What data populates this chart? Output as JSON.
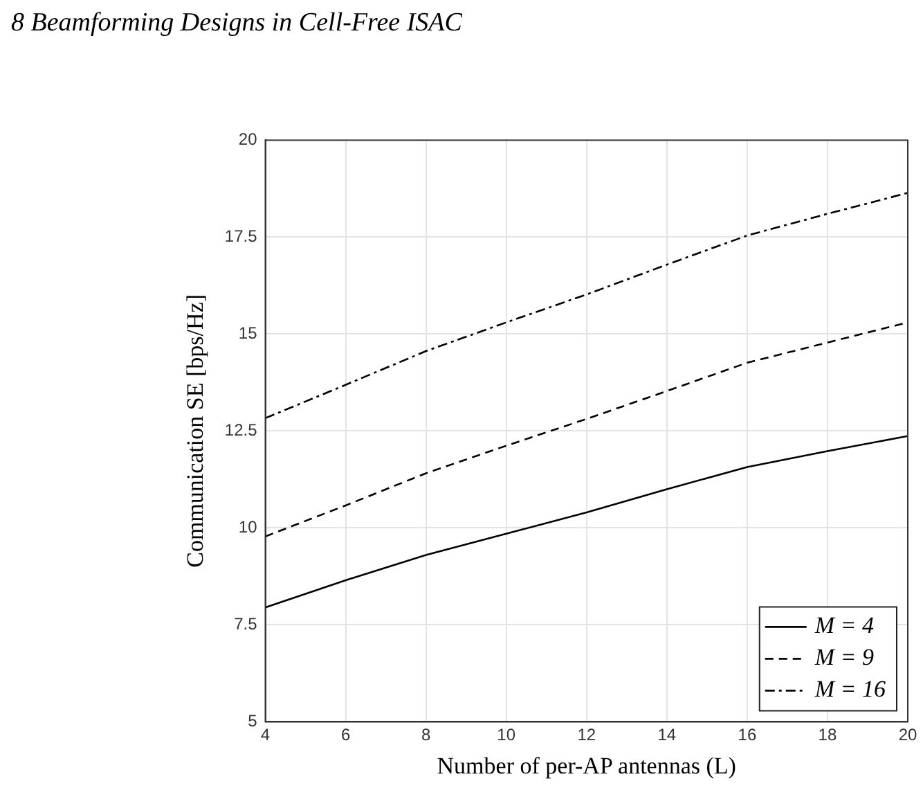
{
  "chart_data": {
    "type": "line",
    "title": "8 Beamforming Designs in Cell-Free ISAC",
    "xlabel": "Number of per-AP antennas (L)",
    "ylabel": "Communication SE [bps/Hz]",
    "x": [
      4,
      6,
      8,
      10,
      12,
      14,
      16,
      18,
      20
    ],
    "series": [
      {
        "name": "M = 4",
        "color": "#000000",
        "line_style": "solid",
        "values": [
          7.95,
          8.65,
          9.3,
          9.85,
          10.4,
          11.0,
          11.57,
          11.98,
          12.37
        ]
      },
      {
        "name": "M = 9",
        "color": "#000000",
        "line_style": "dashed",
        "values": [
          9.78,
          10.58,
          11.41,
          12.12,
          12.81,
          13.53,
          14.26,
          14.78,
          15.3
        ]
      },
      {
        "name": "M = 16",
        "color": "#000000",
        "line_style": "dashdot",
        "values": [
          12.83,
          13.69,
          14.56,
          15.3,
          16.02,
          16.79,
          17.54,
          18.1,
          18.64
        ]
      }
    ],
    "xlim": [
      4,
      20
    ],
    "xticks": [
      4,
      6,
      8,
      10,
      12,
      14,
      16,
      18,
      20
    ],
    "ylim": [
      5,
      20
    ],
    "yticks": [
      5,
      7.5,
      10,
      12.5,
      15,
      17.5,
      20
    ],
    "grid": true,
    "legend": "bottom right",
    "marker": "none"
  }
}
